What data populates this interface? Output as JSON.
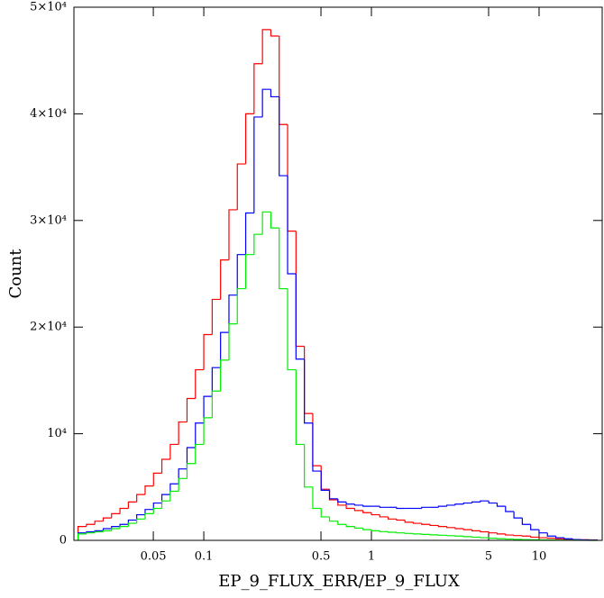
{
  "chart_data": {
    "type": "histogram",
    "xlabel": "EP_9_FLUX_ERR/EP_9_FLUX",
    "ylabel": "Count",
    "xscale": "log",
    "xlim": [
      0.0168,
      23.8
    ],
    "ylim": [
      0,
      50000
    ],
    "xticks": [
      0.05,
      0.1,
      0.5,
      1,
      5,
      10
    ],
    "yticks": [
      0,
      {
        "value": 10000,
        "label": "10⁴"
      },
      {
        "value": 20000,
        "label": "2×10⁴"
      },
      {
        "value": 30000,
        "label": "3×10⁴"
      },
      {
        "value": 40000,
        "label": "4×10⁴"
      },
      {
        "value": 50000,
        "label": "5×10⁴"
      }
    ],
    "bins": [
      0.01778,
      0.01995,
      0.02239,
      0.02512,
      0.02818,
      0.03162,
      0.03548,
      0.03981,
      0.04467,
      0.05012,
      0.05623,
      0.0631,
      0.07079,
      0.07943,
      0.08913,
      0.1,
      0.1122,
      0.1259,
      0.1413,
      0.1585,
      0.1778,
      0.1995,
      0.2239,
      0.2512,
      0.2818,
      0.3162,
      0.3548,
      0.3981,
      0.4467,
      0.5012,
      0.5623,
      0.631,
      0.7079,
      0.7943,
      0.8913,
      1,
      1.122,
      1.259,
      1.413,
      1.585,
      1.778,
      1.995,
      2.239,
      2.512,
      2.818,
      3.162,
      3.548,
      3.981,
      4.467,
      5.012,
      5.623,
      6.31,
      7.079,
      7.943,
      8.913,
      10,
      11.22,
      12.59,
      14.13,
      15.85,
      17.78,
      19.95,
      22.39
    ],
    "series": [
      {
        "color": "#ff0000",
        "values": [
          1300,
          1500,
          1800,
          2100,
          2500,
          3000,
          3600,
          4300,
          5100,
          6300,
          7600,
          9000,
          11100,
          13300,
          16000,
          19300,
          22600,
          26300,
          31000,
          35300,
          40000,
          44700,
          47900,
          47300,
          39000,
          29000,
          18200,
          11900,
          7000,
          4800,
          3800,
          3300,
          3000,
          2800,
          2600,
          2400,
          2200,
          2000,
          1900,
          1700,
          1600,
          1500,
          1400,
          1300,
          1200,
          1100,
          1000,
          900,
          800,
          700,
          600,
          500,
          450,
          400,
          300,
          250,
          200,
          150,
          100,
          80,
          60,
          40
        ]
      },
      {
        "color": "#0000ff",
        "values": [
          700,
          800,
          900,
          1100,
          1300,
          1500,
          1900,
          2400,
          2900,
          3500,
          4300,
          5300,
          6700,
          8700,
          11000,
          13500,
          16200,
          19500,
          23000,
          26800,
          30700,
          39700,
          42300,
          41600,
          34200,
          25000,
          17000,
          11000,
          6500,
          4700,
          3900,
          3600,
          3400,
          3300,
          3200,
          3200,
          3100,
          3100,
          3000,
          3000,
          3000,
          3100,
          3100,
          3200,
          3300,
          3400,
          3500,
          3600,
          3700,
          3500,
          3200,
          2700,
          2100,
          1500,
          1000,
          700,
          400,
          250,
          150,
          80,
          40,
          20
        ]
      },
      {
        "color": "#00ee00",
        "values": [
          600,
          700,
          800,
          900,
          1100,
          1300,
          1600,
          2000,
          2500,
          3000,
          3700,
          4600,
          5800,
          7200,
          9000,
          11500,
          14000,
          16900,
          20300,
          23600,
          26800,
          28700,
          30800,
          29300,
          23600,
          16000,
          9000,
          5000,
          3000,
          2200,
          1800,
          1500,
          1300,
          1150,
          1000,
          900,
          820,
          760,
          700,
          650,
          600,
          560,
          520,
          480,
          440,
          400,
          350,
          300,
          250,
          200,
          160,
          120,
          90,
          70,
          50,
          40,
          30,
          20,
          15,
          10,
          5,
          3
        ]
      }
    ]
  }
}
